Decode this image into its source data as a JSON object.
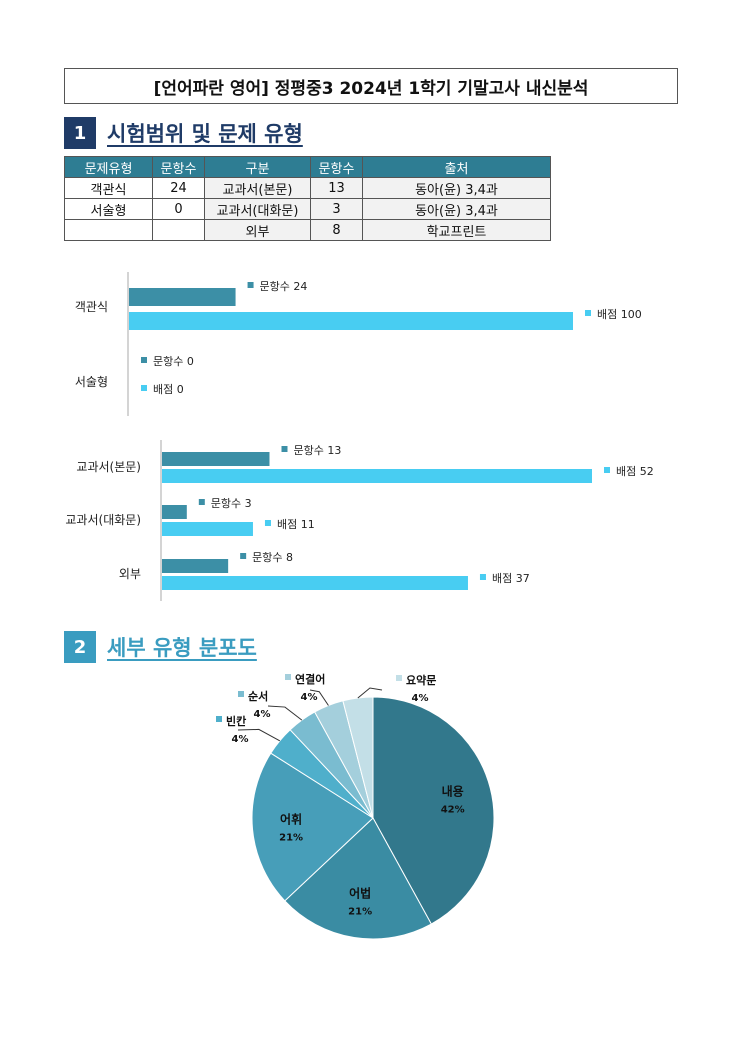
{
  "title": "[언어파란 영어] 정평중3 2024년 1학기 기말고사 내신분석",
  "section1": {
    "num": "1",
    "label": "시험범위 및 문제 유형"
  },
  "section2": {
    "num": "2",
    "label": "세부 유형 분포도"
  },
  "table": {
    "headers": [
      "문제유형",
      "문항수",
      "구분",
      "문항수",
      "출처"
    ],
    "rows": [
      [
        "객관식",
        "24",
        "교과서(본문)",
        "13",
        "동아(윤) 3,4과"
      ],
      [
        "서술형",
        "0",
        "교과서(대화문)",
        "3",
        "동아(윤) 3,4과"
      ],
      [
        "",
        "",
        "외부",
        "8",
        "학교프린트"
      ]
    ]
  },
  "chart_data": [
    {
      "type": "bar",
      "orientation": "horizontal",
      "categories": [
        "객관식",
        "서술형"
      ],
      "series": [
        {
          "name": "문항수",
          "values": [
            24,
            0
          ],
          "color": "#3c8fa6"
        },
        {
          "name": "배점",
          "values": [
            100,
            0
          ],
          "color": "#48cdf2"
        }
      ],
      "xlim": [
        0,
        100
      ]
    },
    {
      "type": "bar",
      "orientation": "horizontal",
      "categories": [
        "교과서(본문)",
        "교과서(대화문)",
        "외부"
      ],
      "series": [
        {
          "name": "문항수",
          "values": [
            13,
            3,
            8
          ],
          "color": "#3c8fa6"
        },
        {
          "name": "배점",
          "values": [
            52,
            11,
            37
          ],
          "color": "#48cdf2"
        }
      ],
      "xlim": [
        0,
        52
      ]
    },
    {
      "type": "pie",
      "slices": [
        {
          "label": "내용",
          "value": 42,
          "pct": "42%",
          "color": "#32788c"
        },
        {
          "label": "어법",
          "value": 21,
          "pct": "21%",
          "color": "#3a8ca3"
        },
        {
          "label": "어휘",
          "value": 21,
          "pct": "21%",
          "color": "#479eb9"
        },
        {
          "label": "빈칸",
          "value": 4,
          "pct": "4%",
          "color": "#4fafcb"
        },
        {
          "label": "순서",
          "value": 4,
          "pct": "4%",
          "color": "#7abcd0"
        },
        {
          "label": "연결어",
          "value": 4,
          "pct": "4%",
          "color": "#a4cfdc"
        },
        {
          "label": "요약문",
          "value": 4,
          "pct": "4%",
          "color": "#c3dfe7"
        }
      ]
    }
  ]
}
